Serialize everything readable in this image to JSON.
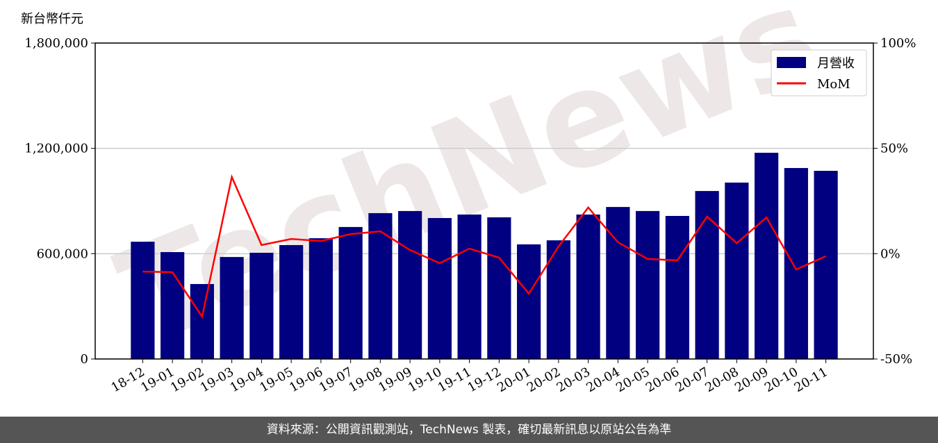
{
  "chart_data": {
    "type": "bar",
    "y_label": "新台幣仟元",
    "watermark": "TechNews",
    "categories": [
      "18-12",
      "19-01",
      "19-02",
      "19-03",
      "19-04",
      "19-05",
      "19-06",
      "19-07",
      "19-08",
      "19-09",
      "19-10",
      "19-11",
      "19-12",
      "20-01",
      "20-02",
      "20-03",
      "20-04",
      "20-05",
      "20-06",
      "20-07",
      "20-08",
      "20-09",
      "20-10",
      "20-11"
    ],
    "series": [
      {
        "name": "月營收",
        "type": "bar",
        "color": "#000080",
        "values": [
          668000,
          609000,
          427000,
          581000,
          605000,
          649000,
          688000,
          752000,
          831000,
          843000,
          803000,
          823000,
          807000,
          653000,
          676000,
          823000,
          866000,
          843000,
          815000,
          957000,
          1005000,
          1175000,
          1088000,
          1072000
        ]
      },
      {
        "name": "MoM",
        "type": "line",
        "axis": "y2",
        "color": "#ff0000",
        "values": [
          -8.5,
          -8.8,
          -29.9,
          36.4,
          4.1,
          7.0,
          6.0,
          9.3,
          10.6,
          1.7,
          -4.5,
          2.4,
          -1.9,
          -19.0,
          3.4,
          21.9,
          5.4,
          -2.5,
          -3.2,
          17.6,
          5.0,
          17.2,
          -7.5,
          -1.2
        ]
      }
    ],
    "ylim": [
      0,
      1800000
    ],
    "yticks": [
      0,
      {
        "value": 600000,
        "label": "600,000"
      },
      {
        "value": 1200000,
        "label": "1,200,000"
      },
      {
        "value": 1800000,
        "label": "1,800,000"
      }
    ],
    "y2lim": [
      -50,
      100
    ],
    "y2ticks": [
      {
        "value": -50,
        "label": "-50%"
      },
      {
        "value": 0,
        "label": "0%"
      },
      {
        "value": 50,
        "label": "50%"
      },
      {
        "value": 100,
        "label": "100%"
      }
    ],
    "grid": true,
    "legend": "upper right"
  },
  "footer": "資料來源：公開資訊觀測站，TechNews 製表，確切最新訊息以原站公告為準"
}
